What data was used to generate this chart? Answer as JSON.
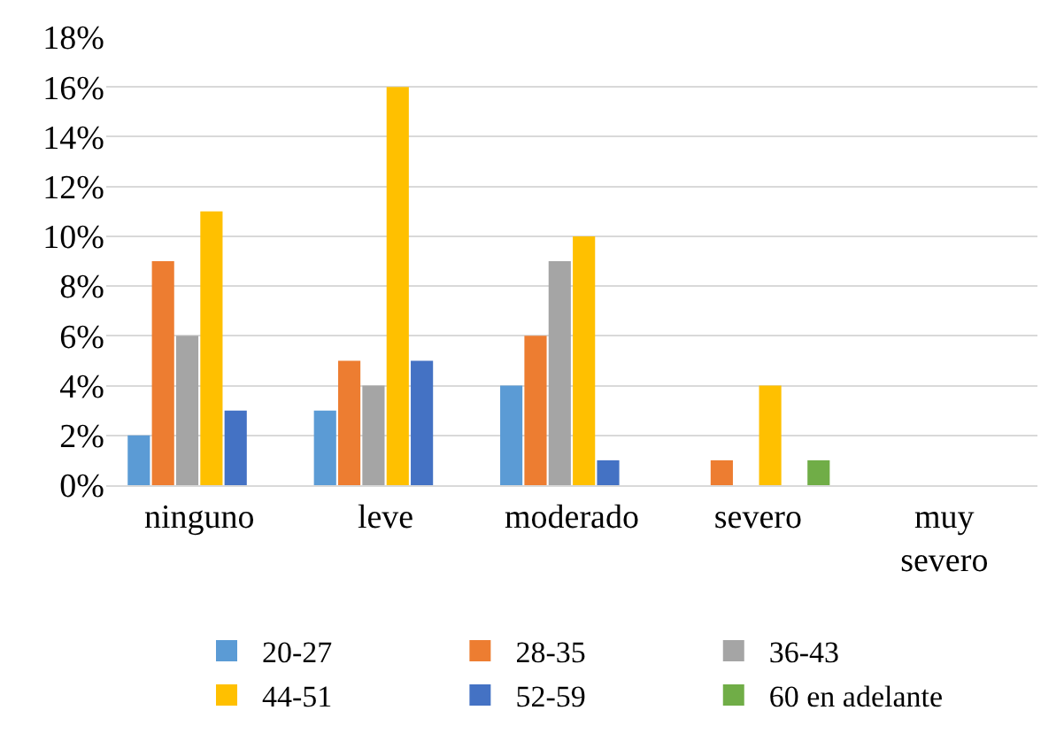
{
  "chart_data": {
    "type": "bar",
    "categories": [
      "ninguno",
      "leve",
      "moderado",
      "severo",
      "muy severo"
    ],
    "series": [
      {
        "name": "20-27",
        "color": "#5b9bd5",
        "values": [
          2,
          3,
          4,
          0,
          0
        ]
      },
      {
        "name": "28-35",
        "color": "#ed7d31",
        "values": [
          9,
          5,
          6,
          1,
          0
        ]
      },
      {
        "name": "36-43",
        "color": "#a5a5a5",
        "values": [
          6,
          4,
          9,
          0,
          0
        ]
      },
      {
        "name": "44-51",
        "color": "#ffc000",
        "values": [
          11,
          16,
          10,
          4,
          0
        ]
      },
      {
        "name": "52-59",
        "color": "#4472c4",
        "values": [
          3,
          5,
          1,
          0,
          0
        ]
      },
      {
        "name": "60 en adelante",
        "color": "#70ad47",
        "values": [
          0,
          0,
          0,
          1,
          0
        ]
      }
    ],
    "ylim": [
      0,
      18
    ],
    "yticks": [
      {
        "value": 0,
        "label": "0%"
      },
      {
        "value": 2,
        "label": "2%"
      },
      {
        "value": 4,
        "label": "4%"
      },
      {
        "value": 6,
        "label": "6%"
      },
      {
        "value": 8,
        "label": "8%"
      },
      {
        "value": 10,
        "label": "10%"
      },
      {
        "value": 12,
        "label": "12%"
      },
      {
        "value": 14,
        "label": "14%"
      },
      {
        "value": 16,
        "label": "16%"
      },
      {
        "value": 18,
        "label": "18%"
      }
    ],
    "grid": "y",
    "legend": "bottom"
  }
}
